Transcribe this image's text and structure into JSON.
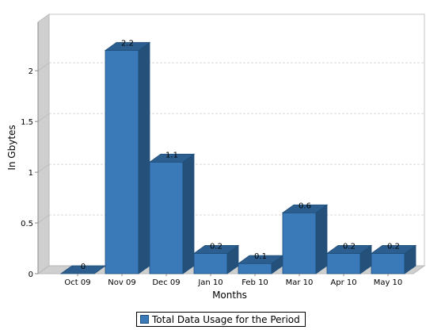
{
  "chart_data": {
    "type": "bar",
    "categories": [
      "Oct 09",
      "Nov 09",
      "Dec 09",
      "Jan 10",
      "Feb 10",
      "Mar 10",
      "Apr 10",
      "May 10"
    ],
    "values": [
      0,
      2.2,
      1.1,
      0.2,
      0.1,
      0.6,
      0.2,
      0.2
    ],
    "value_labels": [
      "0",
      "2.2",
      "1.1",
      "0.2",
      "0.1",
      "0.6",
      "0.2",
      "0.2"
    ],
    "series": [
      {
        "name": "Total Data Usage for the Period",
        "values": [
          0,
          2.2,
          1.1,
          0.2,
          0.1,
          0.6,
          0.2,
          0.2
        ]
      }
    ],
    "xlabel": "Months",
    "ylabel": "In Gbytes",
    "ylim": [
      0,
      2.4
    ],
    "yticks": [
      0,
      0.5,
      1,
      1.5,
      2
    ],
    "ytick_labels": [
      "0",
      "0.5",
      "1",
      "1.5",
      "2"
    ],
    "grid": true,
    "render_3d": true,
    "legend_position": "bottom",
    "colors": {
      "bar_front": "#3a7ab8",
      "bar_top": "#2c5f8f",
      "bar_side": "#24507a",
      "bar_edge": "#1f4e7a",
      "grid": "#d8d8d8",
      "wall": "#cfcfcf"
    }
  },
  "legend": {
    "label": "Total Data Usage for the Period"
  }
}
